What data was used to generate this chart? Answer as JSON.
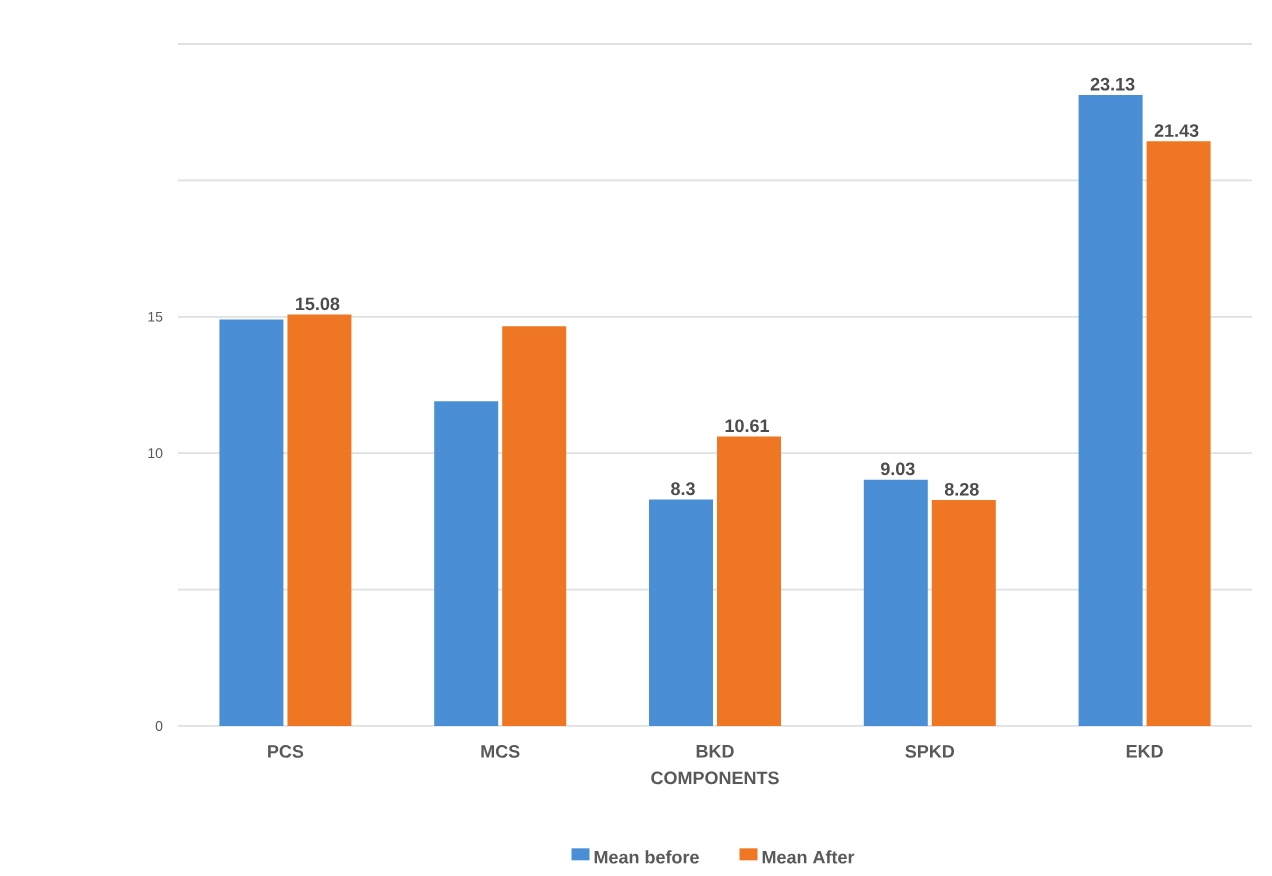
{
  "chart_data": {
    "type": "bar",
    "xlabel": "COMPONENTS",
    "categories": [
      "PCS",
      "MCS",
      "BKD",
      "SPKD",
      "EKD"
    ],
    "series": [
      {
        "name": "Mean before",
        "color": "#4a8fd6",
        "values": [
          14.9,
          11.9,
          8.3,
          9.03,
          23.13
        ],
        "value_labels": [
          null,
          null,
          "8.3",
          "9.03",
          "23.13"
        ]
      },
      {
        "name": "Mean After",
        "color": "#ef7622",
        "values": [
          15.08,
          14.65,
          10.61,
          8.28,
          21.43
        ],
        "value_labels": [
          "15.08",
          null,
          "10.61",
          "8.28",
          "21.43"
        ]
      }
    ],
    "ylim": [
      0,
      25
    ],
    "yticks": [
      0,
      {
        "value": 5,
        "label": null
      },
      10,
      15,
      {
        "value": 20,
        "label": null
      },
      {
        "value": 25,
        "label": null
      }
    ],
    "grid": "y",
    "legend": "bottom"
  }
}
